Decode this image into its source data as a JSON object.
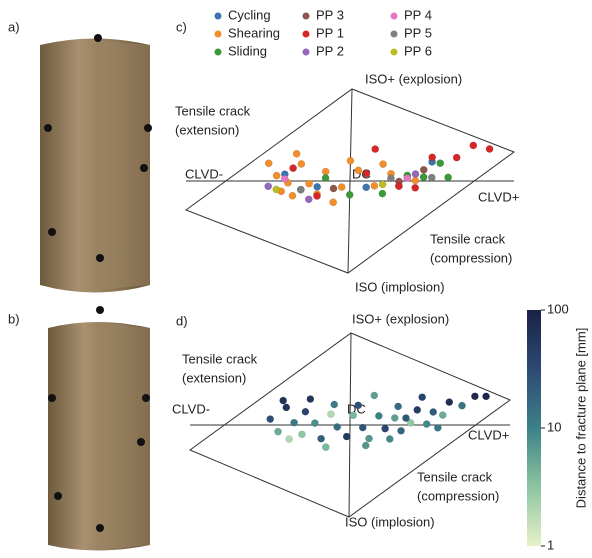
{
  "panel_labels": [
    "a)",
    "b)",
    "c)",
    "d)"
  ],
  "chart_data": [
    {
      "type": "scatter",
      "labels": {
        "top": "ISO+ (explosion)",
        "upper_left": [
          "Tensile crack",
          "(extension)"
        ],
        "left": "CLVD-",
        "center": "DC",
        "right": "CLVD+",
        "lower_right": [
          "Tensile crack",
          "(compression)"
        ],
        "bottom": "ISO (implosion)"
      },
      "xlim": [
        -1,
        1
      ],
      "ylim": [
        -1,
        1
      ],
      "series": [
        {
          "name": "Cycling",
          "color": "#3b75af",
          "x": [
            -0.4,
            0.1,
            0.5,
            -0.2,
            0.3
          ],
          "y": [
            0.2,
            -0.1,
            0.05,
            0.0,
            -0.15
          ]
        },
        {
          "name": "Shearing",
          "color": "#f28e2b",
          "x": [
            -0.5,
            -0.45,
            -0.38,
            -0.3,
            -0.25,
            -0.15,
            -0.05,
            0.05,
            0.15,
            -0.42,
            -0.33,
            -0.2,
            0.0,
            0.25,
            0.4,
            -0.1,
            0.2,
            -0.35
          ],
          "y": [
            0.35,
            0.2,
            0.1,
            0.28,
            0.05,
            0.15,
            -0.05,
            0.1,
            -0.1,
            0.02,
            0.4,
            -0.08,
            0.22,
            0.0,
            -0.12,
            -0.2,
            0.12,
            -0.05
          ]
        },
        {
          "name": "Sliding",
          "color": "#3a9a3a",
          "x": [
            -0.3,
            0.0,
            0.35,
            0.45,
            0.55,
            0.2,
            -0.15,
            0.6
          ],
          "y": [
            0.0,
            -0.15,
            -0.05,
            -0.1,
            0.02,
            -0.2,
            0.08,
            -0.15
          ]
        },
        {
          "name": "PP 3",
          "color": "#8c564b",
          "x": [
            0.3,
            0.45,
            -0.1
          ],
          "y": [
            -0.1,
            -0.02,
            -0.05
          ]
        },
        {
          "name": "PP 1",
          "color": "#d62728",
          "x": [
            -0.35,
            0.1,
            0.3,
            0.5,
            0.65,
            0.85,
            0.75,
            -0.2,
            0.4,
            0.15
          ],
          "y": [
            0.25,
            0.05,
            -0.15,
            0.1,
            0.05,
            0.08,
            0.15,
            -0.1,
            -0.2,
            0.3
          ]
        },
        {
          "name": "PP 2",
          "color": "#9467bd",
          "x": [
            -0.5,
            0.4,
            -0.25
          ],
          "y": [
            0.1,
            -0.05,
            -0.12
          ]
        },
        {
          "name": "PP 4",
          "color": "#e377c2",
          "x": [
            -0.4,
            0.35
          ],
          "y": [
            0.15,
            -0.08
          ]
        },
        {
          "name": "PP 5",
          "color": "#7f7f7f",
          "x": [
            0.5,
            0.25,
            -0.3
          ],
          "y": [
            -0.12,
            -0.05,
            0.0
          ]
        },
        {
          "name": "PP 6",
          "color": "#bcbd22",
          "x": [
            -0.45,
            0.2
          ],
          "y": [
            0.05,
            -0.1
          ]
        }
      ]
    },
    {
      "type": "colorscatter",
      "labels": {
        "top": "ISO+ (explosion)",
        "upper_left": [
          "Tensile crack",
          "(extension)"
        ],
        "left": "CLVD-",
        "center": "DC",
        "right": "CLVD+",
        "lower_right": [
          "Tensile crack",
          "(compression)"
        ],
        "bottom": "ISO (implosion)"
      },
      "xlim": [
        -1,
        1
      ],
      "ylim": [
        -1,
        1
      ],
      "x": [
        -0.5,
        -0.45,
        -0.4,
        -0.35,
        -0.3,
        -0.28,
        -0.22,
        -0.18,
        -0.12,
        -0.08,
        -0.02,
        0.02,
        0.08,
        0.12,
        0.18,
        0.22,
        0.28,
        0.32,
        0.38,
        0.42,
        0.48,
        0.52,
        0.58,
        0.62,
        0.7,
        0.78,
        0.85,
        -0.38,
        -0.25,
        -0.1,
        0.05,
        0.15,
        0.3,
        0.45,
        -0.15,
        0.25,
        0.55,
        -0.42,
        0.1,
        0.35
      ],
      "y": [
        0.2,
        0.05,
        0.3,
        0.12,
        -0.02,
        0.22,
        0.08,
        -0.1,
        0.15,
        0.0,
        -0.12,
        0.1,
        -0.05,
        -0.18,
        0.05,
        -0.1,
        0.0,
        -0.15,
        -0.08,
        0.05,
        -0.12,
        0.0,
        -0.05,
        0.08,
        0.02,
        0.1,
        0.08,
        -0.05,
        0.35,
        0.25,
        0.2,
        0.28,
        0.12,
        0.18,
        -0.2,
        -0.22,
        -0.18,
        0.38,
        -0.25,
        -0.02
      ],
      "distance": [
        30,
        5,
        60,
        12,
        3,
        40,
        8,
        20,
        2,
        15,
        50,
        4,
        25,
        7,
        10,
        35,
        6,
        18,
        3,
        45,
        9,
        22,
        5,
        70,
        14,
        80,
        90,
        2,
        55,
        11,
        28,
        6,
        16,
        38,
        4,
        9,
        13,
        65,
        7,
        24
      ],
      "colorbar": {
        "label": "Distance to fracture plane [mm]",
        "clim": [
          1,
          100
        ],
        "cticks": [
          1,
          10,
          100
        ],
        "log": true,
        "colors": [
          "#e8f1c9",
          "#8cc5a0",
          "#3b8188",
          "#2c4a74",
          "#1a2245"
        ]
      }
    }
  ]
}
